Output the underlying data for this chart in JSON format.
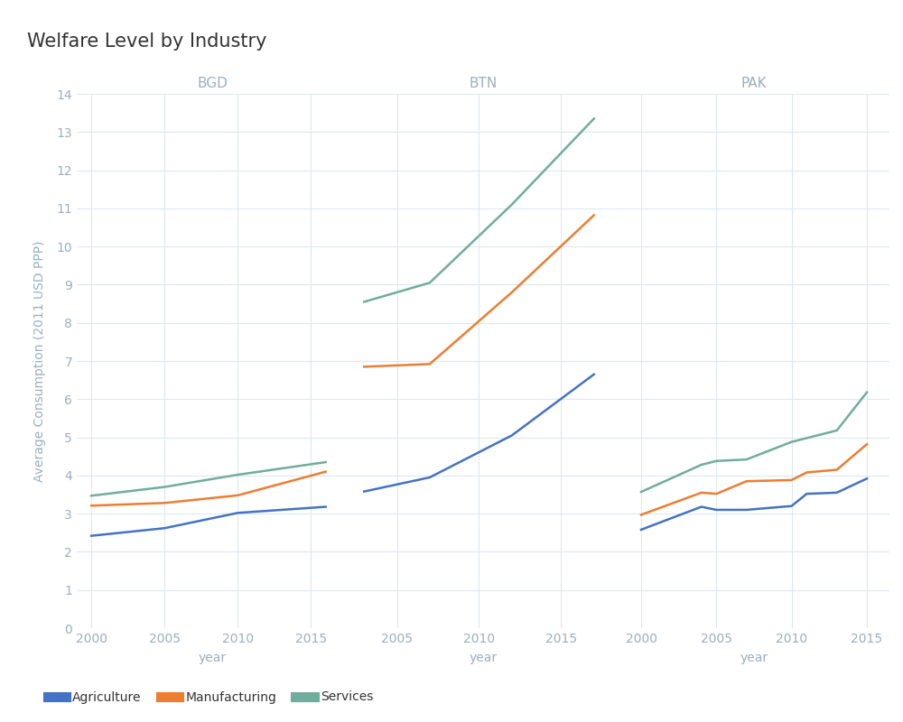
{
  "title": "Welfare Level by Industry",
  "ylabel": "Average Consumption (2011 USD PPP)",
  "xlabel": "year",
  "ylim": [
    0,
    14
  ],
  "yticks": [
    0,
    1,
    2,
    3,
    4,
    5,
    6,
    7,
    8,
    9,
    10,
    11,
    12,
    13,
    14
  ],
  "countries": [
    "BGD",
    "BTN",
    "PAK"
  ],
  "industries": [
    "Agriculture",
    "Manufacturing",
    "Services"
  ],
  "colors": {
    "Agriculture": "#4472c4",
    "Manufacturing": "#ed7d31",
    "Services": "#70ad9c"
  },
  "data": {
    "BGD": {
      "Agriculture": {
        "years": [
          2000,
          2005,
          2010,
          2016
        ],
        "values": [
          2.42,
          2.62,
          3.02,
          3.18
        ]
      },
      "Manufacturing": {
        "years": [
          2000,
          2005,
          2010,
          2016
        ],
        "values": [
          3.21,
          3.28,
          3.48,
          4.1
        ]
      },
      "Services": {
        "years": [
          2000,
          2005,
          2010,
          2016
        ],
        "values": [
          3.47,
          3.7,
          4.02,
          4.35
        ]
      }
    },
    "BTN": {
      "Agriculture": {
        "years": [
          2003,
          2007,
          2012,
          2017
        ],
        "values": [
          3.58,
          3.95,
          5.05,
          6.65
        ]
      },
      "Manufacturing": {
        "years": [
          2003,
          2007,
          2012,
          2017
        ],
        "values": [
          6.85,
          6.92,
          8.8,
          10.82
        ]
      },
      "Services": {
        "years": [
          2003,
          2007,
          2012,
          2017
        ],
        "values": [
          8.55,
          9.05,
          11.1,
          13.35
        ]
      }
    },
    "PAK": {
      "Agriculture": {
        "years": [
          2000,
          2004,
          2005,
          2007,
          2010,
          2011,
          2013,
          2015
        ],
        "values": [
          2.58,
          3.18,
          3.1,
          3.1,
          3.2,
          3.52,
          3.55,
          3.92
        ]
      },
      "Manufacturing": {
        "years": [
          2000,
          2004,
          2005,
          2007,
          2010,
          2011,
          2013,
          2015
        ],
        "values": [
          2.97,
          3.55,
          3.52,
          3.85,
          3.88,
          4.08,
          4.15,
          4.82
        ]
      },
      "Services": {
        "years": [
          2000,
          2004,
          2005,
          2007,
          2010,
          2011,
          2013,
          2015
        ],
        "values": [
          3.57,
          4.28,
          4.38,
          4.42,
          4.88,
          4.98,
          5.18,
          6.18
        ]
      }
    }
  },
  "title_color": "#333333",
  "country_label_color": "#9aafbf",
  "axis_color": "#9aafbf",
  "grid_color": "#dce8f0",
  "background_color": "#ffffff",
  "title_fontsize": 15,
  "country_fontsize": 11,
  "tick_fontsize": 10,
  "label_fontsize": 10,
  "xlims": {
    "BGD": [
      1999.0,
      2017.5
    ],
    "BTN": [
      2002.0,
      2018.5
    ],
    "PAK": [
      1998.5,
      2016.5
    ]
  },
  "xticks": {
    "BGD": [
      2000,
      2005,
      2010,
      2015
    ],
    "BTN": [
      2005,
      2010,
      2015
    ],
    "PAK": [
      2000,
      2005,
      2010,
      2015
    ]
  }
}
